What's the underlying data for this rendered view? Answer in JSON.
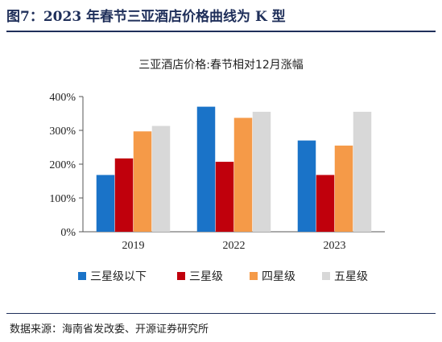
{
  "figure": {
    "title": "图7：2023 年春节三亚酒店价格曲线为 K 型",
    "source": "数据来源：海南省发改委、开源证券研究所"
  },
  "colors": {
    "title": "#1f2f5a",
    "series": [
      "#1a73c8",
      "#c0000c",
      "#f59a48",
      "#d8d8d8"
    ]
  },
  "chart_data": {
    "type": "bar",
    "title": "三亚酒店价格:春节相对12月涨幅",
    "xlabel": "",
    "ylabel": "",
    "categories": [
      "2019",
      "2022",
      "2023"
    ],
    "ylim": [
      0,
      400
    ],
    "yticks": [
      0,
      100,
      200,
      300,
      400
    ],
    "ytick_labels": [
      "0%",
      "100%",
      "200%",
      "300%",
      "400%"
    ],
    "grid": false,
    "legend_position": "bottom",
    "series": [
      {
        "name": "三星级以下",
        "values": [
          168,
          370,
          270
        ]
      },
      {
        "name": "三星级",
        "values": [
          217,
          207,
          168
        ]
      },
      {
        "name": "四星级",
        "values": [
          297,
          337,
          255
        ]
      },
      {
        "name": "五星级",
        "values": [
          313,
          355,
          355
        ]
      }
    ]
  }
}
